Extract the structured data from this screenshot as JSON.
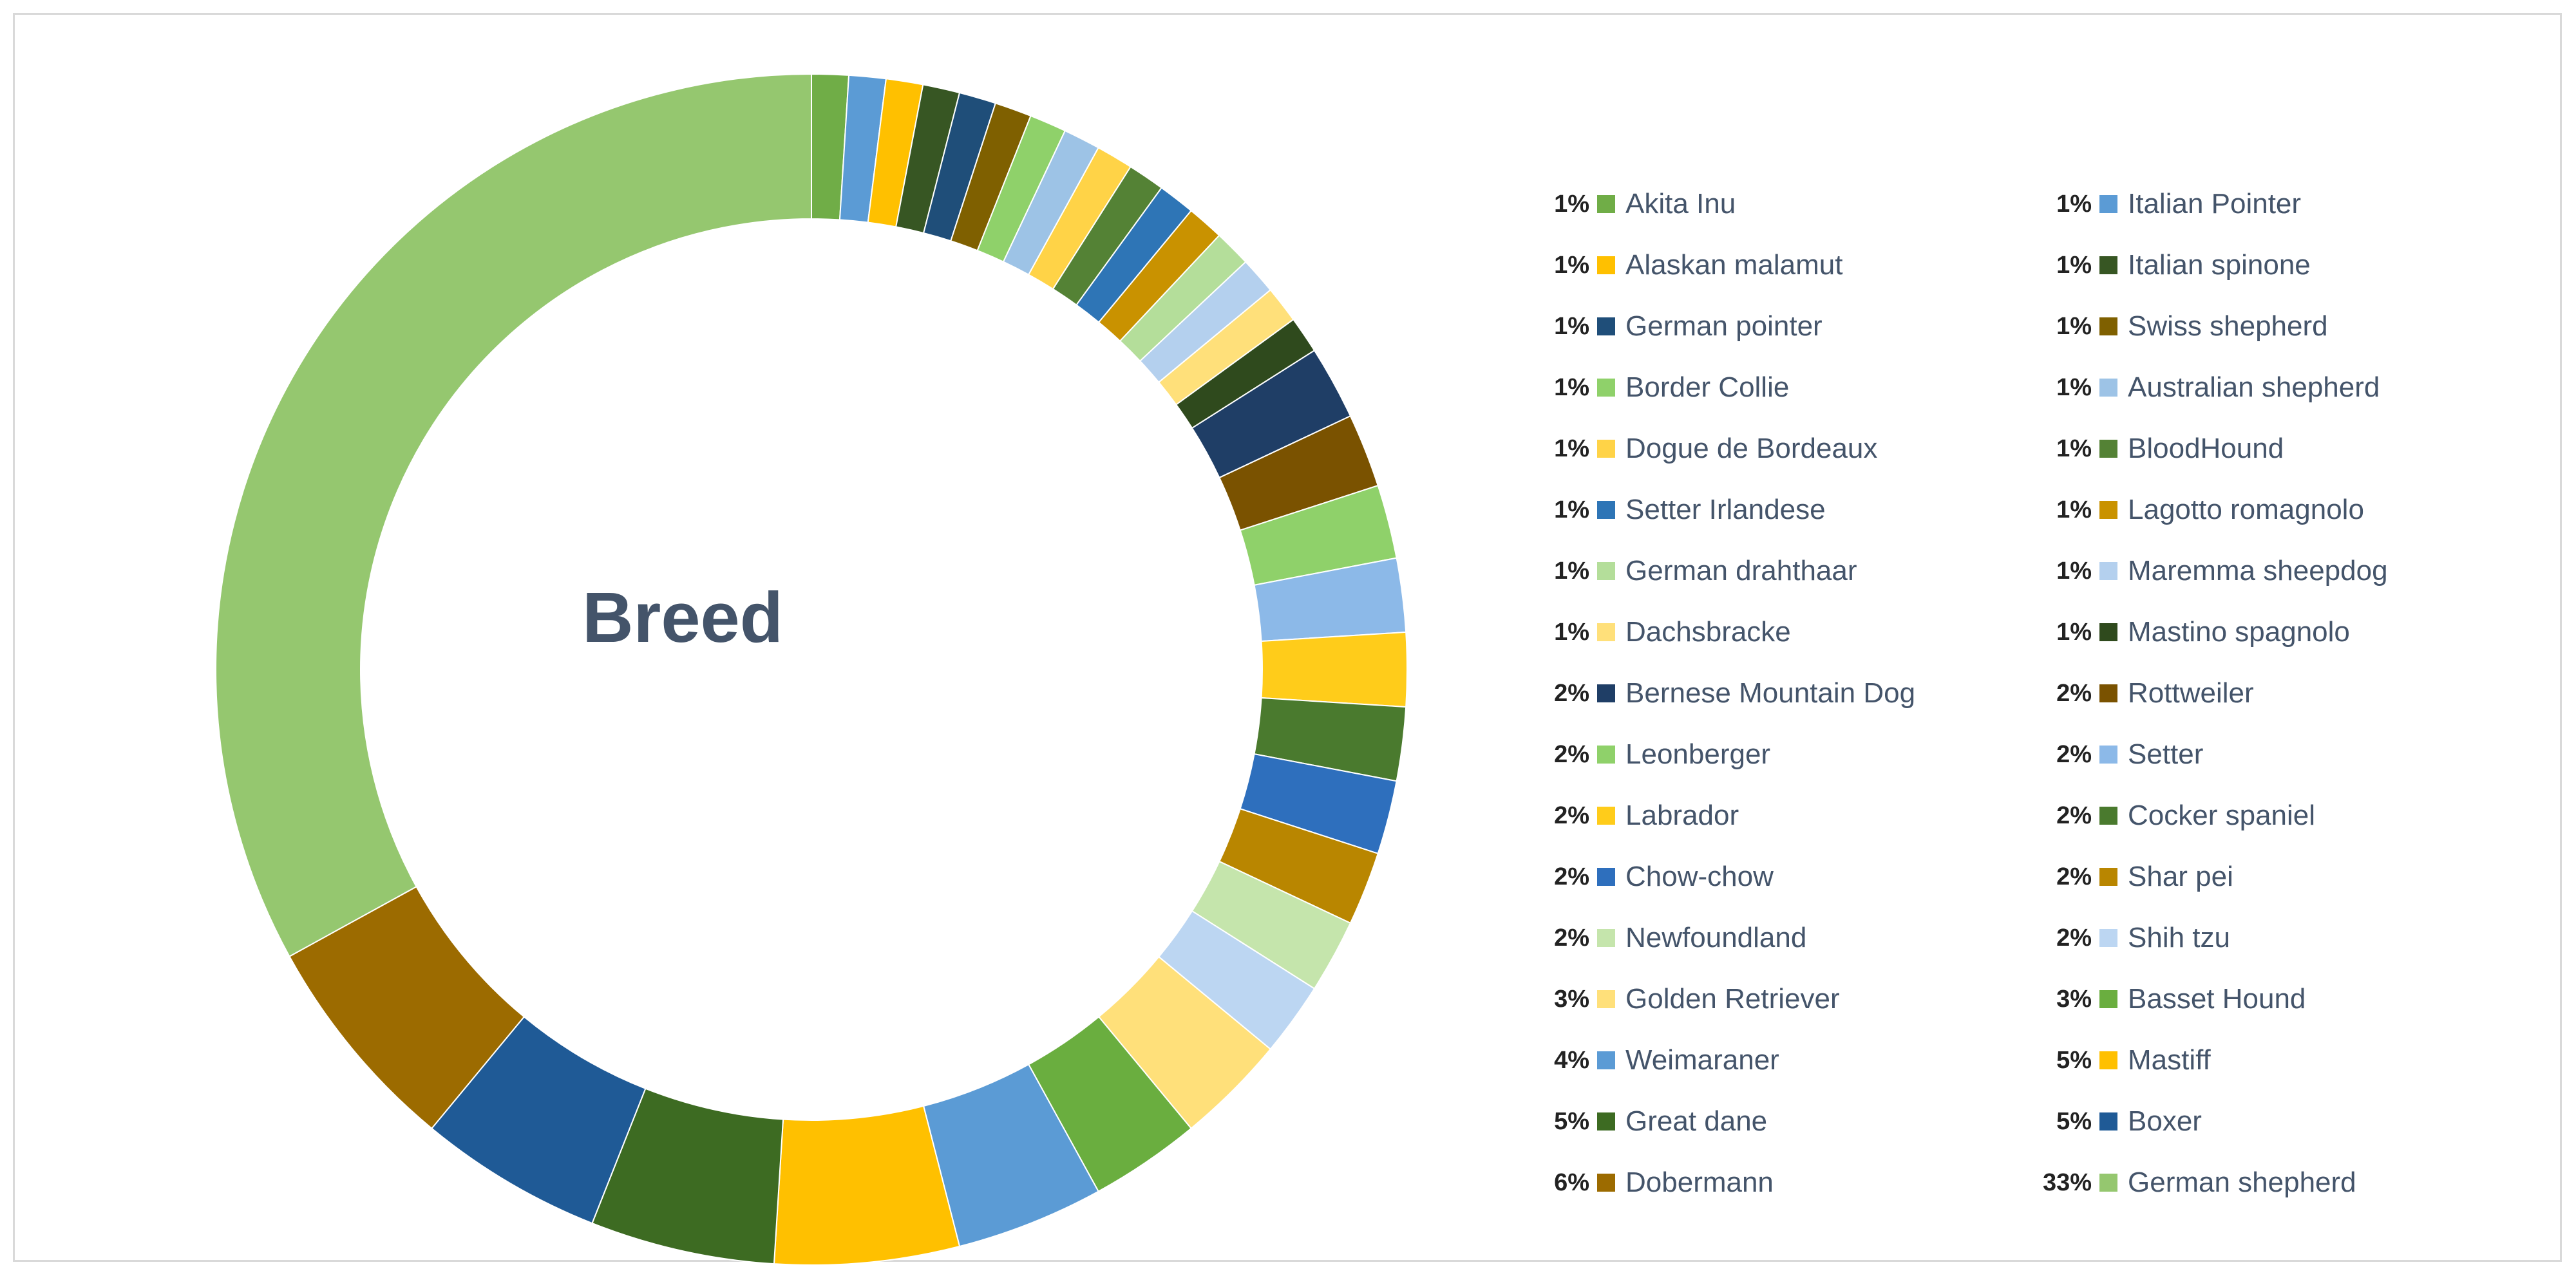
{
  "chart_data": {
    "type": "pie",
    "style": "donut",
    "title": "Breed",
    "legend_position": "right",
    "slices": [
      {
        "label": "Akita Inu",
        "value": 1,
        "pct_label": "1%",
        "color": "#70ad47"
      },
      {
        "label": "Italian Pointer",
        "value": 1,
        "pct_label": "1%",
        "color": "#5b9bd5"
      },
      {
        "label": "Alaskan malamut",
        "value": 1,
        "pct_label": "1%",
        "color": "#ffc000"
      },
      {
        "label": "Italian spinone",
        "value": 1,
        "pct_label": "1%",
        "color": "#375623"
      },
      {
        "label": "German pointer",
        "value": 1,
        "pct_label": "1%",
        "color": "#1f4e79"
      },
      {
        "label": "Swiss shepherd",
        "value": 1,
        "pct_label": "1%",
        "color": "#7f6000"
      },
      {
        "label": "Border Collie",
        "value": 1,
        "pct_label": "1%",
        "color": "#8fd16a"
      },
      {
        "label": "Australian shepherd",
        "value": 1,
        "pct_label": "1%",
        "color": "#9dc3e6"
      },
      {
        "label": "Dogue de Bordeaux",
        "value": 1,
        "pct_label": "1%",
        "color": "#ffd347"
      },
      {
        "label": "BloodHound",
        "value": 1,
        "pct_label": "1%",
        "color": "#548235"
      },
      {
        "label": "Setter Irlandese",
        "value": 1,
        "pct_label": "1%",
        "color": "#2e75b6"
      },
      {
        "label": "Lagotto romagnolo",
        "value": 1,
        "pct_label": "1%",
        "color": "#c99200"
      },
      {
        "label": "German drahthaar",
        "value": 1,
        "pct_label": "1%",
        "color": "#b4de9a"
      },
      {
        "label": "Maremma sheepdog",
        "value": 1,
        "pct_label": "1%",
        "color": "#b4d0ee"
      },
      {
        "label": "Dachsbracke",
        "value": 1,
        "pct_label": "1%",
        "color": "#ffe07a"
      },
      {
        "label": "Mastino spagnolo",
        "value": 1,
        "pct_label": "1%",
        "color": "#2f4a1d"
      },
      {
        "label": "Bernese Mountain Dog",
        "value": 2,
        "pct_label": "2%",
        "color": "#1f3e66"
      },
      {
        "label": "Rottweiler",
        "value": 2,
        "pct_label": "2%",
        "color": "#7a5200"
      },
      {
        "label": "Leonberger",
        "value": 2,
        "pct_label": "2%",
        "color": "#8fd16a"
      },
      {
        "label": "Setter",
        "value": 2,
        "pct_label": "2%",
        "color": "#8cb9e8"
      },
      {
        "label": "Labrador",
        "value": 2,
        "pct_label": "2%",
        "color": "#ffcc1a"
      },
      {
        "label": "Cocker spaniel",
        "value": 2,
        "pct_label": "2%",
        "color": "#4a7a2e"
      },
      {
        "label": "Chow-chow",
        "value": 2,
        "pct_label": "2%",
        "color": "#2e6fbd"
      },
      {
        "label": "Shar pei",
        "value": 2,
        "pct_label": "2%",
        "color": "#b98600"
      },
      {
        "label": "Newfoundland",
        "value": 2,
        "pct_label": "2%",
        "color": "#c5e5ac"
      },
      {
        "label": "Shih tzu",
        "value": 2,
        "pct_label": "2%",
        "color": "#bcd6f2"
      },
      {
        "label": "Golden Retriever",
        "value": 3,
        "pct_label": "3%",
        "color": "#ffe07a"
      },
      {
        "label": "Basset Hound",
        "value": 3,
        "pct_label": "3%",
        "color": "#6aae3f"
      },
      {
        "label": "Weimaraner",
        "value": 4,
        "pct_label": "4%",
        "color": "#5b9bd5"
      },
      {
        "label": "Mastiff",
        "value": 5,
        "pct_label": "5%",
        "color": "#ffc000"
      },
      {
        "label": "Great dane",
        "value": 5,
        "pct_label": "5%",
        "color": "#3d6b22"
      },
      {
        "label": "Boxer",
        "value": 5,
        "pct_label": "5%",
        "color": "#1f5a96"
      },
      {
        "label": "Dobermann",
        "value": 6,
        "pct_label": "6%",
        "color": "#9c6b00"
      },
      {
        "label": "German shepherd",
        "value": 33,
        "pct_label": "33%",
        "color": "#95c76f"
      }
    ]
  }
}
